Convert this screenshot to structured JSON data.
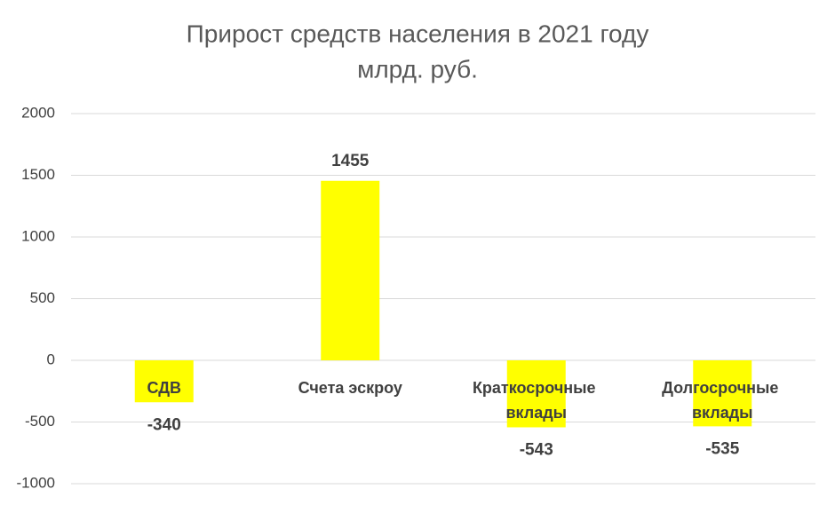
{
  "chart_data": {
    "type": "bar",
    "title": "Прирост средств населения в 2021 году",
    "subtitle": "млрд. руб.",
    "categories": [
      "СДВ",
      "Счета эскроу",
      "Краткосрочные вклады",
      "Долгосрочные вклады"
    ],
    "values": [
      -340,
      1455,
      -543,
      -535
    ],
    "color": "#ffff00",
    "ylim": [
      -1000,
      2000
    ],
    "yticks": [
      -1000,
      -500,
      0,
      500,
      1000,
      1500,
      2000
    ],
    "grid": true
  }
}
